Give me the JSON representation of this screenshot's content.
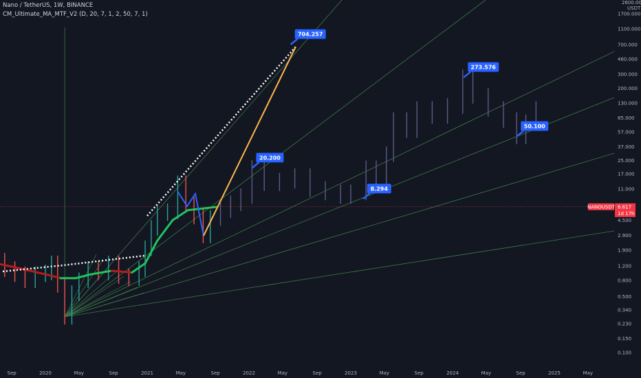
{
  "legend": {
    "symbol_line": "Nano / TetherUS, 1W, BINANCE",
    "indicator_line": "CM_Ultimate_MA_MTF_V2 (D, 20, 7, 1, 2, 50, 7, 1)"
  },
  "price_tag": {
    "symbol": "NANOUSDT",
    "price": "6.617",
    "countdown": "1d 17h",
    "color": "#f23645"
  },
  "colors": {
    "background": "#131722",
    "callout": "#2962ff",
    "fan_line": "#3e7a48",
    "candle": "#5d5a86",
    "ma_up": "#22c55e",
    "ma_down": "#b71c1c",
    "orange_line": "#ffb74d",
    "blue_line": "#2962ff",
    "dotted_line": "#ffffff"
  },
  "chart_data": {
    "type": "candlestick",
    "title": "Nano / TetherUS, 1W, BINANCE",
    "y_scale": "log",
    "ylim": [
      0.08,
      2500
    ],
    "y_unit": "USDT",
    "y_ticks": [
      "2600.000",
      "1700.000",
      "1100.000",
      "700.000",
      "460.000",
      "300.000",
      "200.000",
      "130.000",
      "85.000",
      "57.000",
      "37.000",
      "25.000",
      "17.000",
      "11.000",
      "4.500",
      "2.900",
      "1.900",
      "1.200",
      "0.800",
      "0.500",
      "0.340",
      "0.230",
      "0.150",
      "0.100"
    ],
    "x_ticks": [
      "Sep",
      "2020",
      "May",
      "Sep",
      "2021",
      "May",
      "Sep",
      "2022",
      "May",
      "Sep",
      "2023",
      "May",
      "Sep",
      "2024",
      "May",
      "Sep",
      "2025",
      "May"
    ],
    "price_series": [
      {
        "t": 2019.5,
        "v": 1.4
      },
      {
        "t": 2019.6,
        "v": 1.1
      },
      {
        "t": 2019.7,
        "v": 0.95
      },
      {
        "t": 2019.8,
        "v": 0.8
      },
      {
        "t": 2019.9,
        "v": 0.95
      },
      {
        "t": 2020.0,
        "v": 1.0
      },
      {
        "t": 2020.06,
        "v": 1.3
      },
      {
        "t": 2020.12,
        "v": 0.7
      },
      {
        "t": 2020.19,
        "v": 0.28
      },
      {
        "t": 2020.26,
        "v": 0.55
      },
      {
        "t": 2020.33,
        "v": 0.8
      },
      {
        "t": 2020.42,
        "v": 1.1
      },
      {
        "t": 2020.52,
        "v": 1.0
      },
      {
        "t": 2020.62,
        "v": 1.3
      },
      {
        "t": 2020.72,
        "v": 0.9
      },
      {
        "t": 2020.82,
        "v": 0.85
      },
      {
        "t": 2020.92,
        "v": 1.1
      },
      {
        "t": 2020.98,
        "v": 2.0
      },
      {
        "t": 2021.04,
        "v": 3.6
      },
      {
        "t": 2021.1,
        "v": 5.5
      },
      {
        "t": 2021.2,
        "v": 5.8
      },
      {
        "t": 2021.3,
        "v": 13.0
      },
      {
        "t": 2021.38,
        "v": 7.0
      },
      {
        "t": 2021.46,
        "v": 5.0
      },
      {
        "t": 2021.55,
        "v": 2.9
      },
      {
        "t": 2021.62,
        "v": 4.8
      },
      {
        "t": 2021.72,
        "v": 6.0
      },
      {
        "t": 2021.82,
        "v": 7.3
      },
      {
        "t": 2021.92,
        "v": 9.0
      },
      {
        "t": 2022.03,
        "v": 20.2
      },
      {
        "t": 2022.15,
        "v": 13.0
      },
      {
        "t": 2022.3,
        "v": 14.0
      },
      {
        "t": 2022.45,
        "v": 16.0
      },
      {
        "t": 2022.6,
        "v": 11.0
      },
      {
        "t": 2022.75,
        "v": 10.0
      },
      {
        "t": 2022.9,
        "v": 9.0
      },
      {
        "t": 2023.0,
        "v": 10.0
      },
      {
        "t": 2023.15,
        "v": 20.0
      },
      {
        "t": 2023.25,
        "v": 14.0
      },
      {
        "t": 2023.35,
        "v": 30.0
      },
      {
        "t": 2023.42,
        "v": 80.0
      },
      {
        "t": 2023.55,
        "v": 60.0
      },
      {
        "t": 2023.65,
        "v": 110.0
      },
      {
        "t": 2023.8,
        "v": 90.0
      },
      {
        "t": 2023.95,
        "v": 120.0
      },
      {
        "t": 2024.1,
        "v": 273.6
      },
      {
        "t": 2024.2,
        "v": 160.0
      },
      {
        "t": 2024.35,
        "v": 110.0
      },
      {
        "t": 2024.5,
        "v": 80.0
      },
      {
        "t": 2024.63,
        "v": 50.1
      },
      {
        "t": 2024.72,
        "v": 75.0
      },
      {
        "t": 2024.82,
        "v": 110.0
      }
    ],
    "ma_series": [
      {
        "t": 2019.45,
        "v": 1.35
      },
      {
        "t": 2019.65,
        "v": 1.2
      },
      {
        "t": 2019.85,
        "v": 1.05
      },
      {
        "t": 2020.0,
        "v": 0.95
      },
      {
        "t": 2020.15,
        "v": 0.85
      },
      {
        "t": 2020.3,
        "v": 0.85
      },
      {
        "t": 2020.45,
        "v": 0.95
      },
      {
        "t": 2020.65,
        "v": 1.05
      },
      {
        "t": 2020.85,
        "v": 1.0
      },
      {
        "t": 2020.98,
        "v": 1.3
      },
      {
        "t": 2021.1,
        "v": 2.5
      },
      {
        "t": 2021.25,
        "v": 4.5
      },
      {
        "t": 2021.4,
        "v": 6.0
      },
      {
        "t": 2021.55,
        "v": 6.3
      },
      {
        "t": 2021.68,
        "v": 6.6
      }
    ],
    "callouts": [
      {
        "label": "704.257",
        "t": 2022.41,
        "v": 704.257
      },
      {
        "label": "20.200",
        "t": 2022.03,
        "v": 20.2
      },
      {
        "label": "8.294",
        "t": 2023.12,
        "v": 8.294
      },
      {
        "label": "273.576",
        "t": 2024.11,
        "v": 273.576
      },
      {
        "label": "50.100",
        "t": 2024.63,
        "v": 50.1
      }
    ],
    "fan_origin": {
      "t": 2020.19,
      "v": 0.28
    },
    "grid": false,
    "legend_position": "top-left"
  }
}
